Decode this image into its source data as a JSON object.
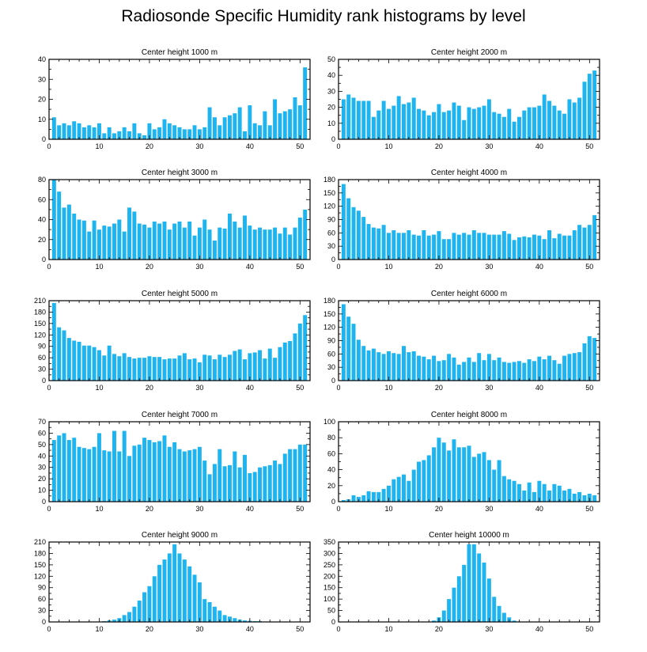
{
  "title": "Radiosonde Specific Humidity rank histograms by level",
  "bar_color": "#1EB4F0",
  "chart_data": [
    {
      "type": "bar",
      "title": "Center height 1000 m",
      "x": [
        1,
        2,
        3,
        4,
        5,
        6,
        7,
        8,
        9,
        10,
        11,
        12,
        13,
        14,
        15,
        16,
        17,
        18,
        19,
        20,
        21,
        22,
        23,
        24,
        25,
        26,
        27,
        28,
        29,
        30,
        31,
        32,
        33,
        34,
        35,
        36,
        37,
        38,
        39,
        40,
        41,
        42,
        43,
        44,
        45,
        46,
        47,
        48,
        49,
        50,
        51
      ],
      "values": [
        11,
        7,
        8,
        7,
        9,
        8,
        6,
        7,
        6,
        8,
        3,
        6,
        3,
        4,
        6,
        4,
        8,
        3,
        2,
        8,
        5,
        6,
        10,
        8,
        7,
        6,
        5,
        5,
        7,
        5,
        6,
        16,
        11,
        7,
        11,
        12,
        13,
        16,
        4,
        17,
        8,
        7,
        14,
        7,
        20,
        13,
        14,
        15,
        21,
        17,
        36
      ],
      "xlim": [
        0,
        52
      ],
      "xticks": [
        0,
        10,
        20,
        30,
        40,
        50
      ],
      "ylim": [
        0,
        40
      ],
      "yticks": [
        0,
        10,
        20,
        30,
        40
      ],
      "yminor": 5,
      "xlabel": "",
      "ylabel": ""
    },
    {
      "type": "bar",
      "title": "Center height 2000 m",
      "x": [
        1,
        2,
        3,
        4,
        5,
        6,
        7,
        8,
        9,
        10,
        11,
        12,
        13,
        14,
        15,
        16,
        17,
        18,
        19,
        20,
        21,
        22,
        23,
        24,
        25,
        26,
        27,
        28,
        29,
        30,
        31,
        32,
        33,
        34,
        35,
        36,
        37,
        38,
        39,
        40,
        41,
        42,
        43,
        44,
        45,
        46,
        47,
        48,
        49,
        50,
        51
      ],
      "values": [
        25,
        28,
        26,
        24,
        24,
        24,
        14,
        18,
        24,
        19,
        21,
        27,
        22,
        23,
        26,
        19,
        18,
        15,
        17,
        22,
        17,
        18,
        23,
        21,
        12,
        20,
        19,
        20,
        21,
        25,
        17,
        16,
        14,
        19,
        11,
        14,
        18,
        20,
        20,
        21,
        28,
        24,
        21,
        18,
        16,
        25,
        23,
        26,
        36,
        41,
        43
      ],
      "xlim": [
        0,
        52
      ],
      "xticks": [
        0,
        10,
        20,
        30,
        40,
        50
      ],
      "ylim": [
        0,
        50
      ],
      "yticks": [
        0,
        10,
        20,
        30,
        40,
        50
      ],
      "yminor": 5,
      "xlabel": "",
      "ylabel": ""
    },
    {
      "type": "bar",
      "title": "Center height 3000 m",
      "x": [
        1,
        2,
        3,
        4,
        5,
        6,
        7,
        8,
        9,
        10,
        11,
        12,
        13,
        14,
        15,
        16,
        17,
        18,
        19,
        20,
        21,
        22,
        23,
        24,
        25,
        26,
        27,
        28,
        29,
        30,
        31,
        32,
        33,
        34,
        35,
        36,
        37,
        38,
        39,
        40,
        41,
        42,
        43,
        44,
        45,
        46,
        47,
        48,
        49,
        50,
        51
      ],
      "values": [
        80,
        68,
        52,
        55,
        46,
        40,
        39,
        28,
        39,
        30,
        34,
        33,
        36,
        40,
        28,
        52,
        48,
        36,
        35,
        32,
        38,
        36,
        38,
        30,
        36,
        38,
        32,
        38,
        24,
        32,
        40,
        30,
        19,
        32,
        31,
        46,
        38,
        32,
        44,
        34,
        30,
        32,
        30,
        30,
        32,
        26,
        32,
        25,
        32,
        42,
        50
      ],
      "xlim": [
        0,
        52
      ],
      "xticks": [
        0,
        10,
        20,
        30,
        40,
        50
      ],
      "ylim": [
        0,
        80
      ],
      "yticks": [
        0,
        20,
        40,
        60,
        80
      ],
      "yminor": 10,
      "xlabel": "",
      "ylabel": ""
    },
    {
      "type": "bar",
      "title": "Center height 4000 m",
      "x": [
        1,
        2,
        3,
        4,
        5,
        6,
        7,
        8,
        9,
        10,
        11,
        12,
        13,
        14,
        15,
        16,
        17,
        18,
        19,
        20,
        21,
        22,
        23,
        24,
        25,
        26,
        27,
        28,
        29,
        30,
        31,
        32,
        33,
        34,
        35,
        36,
        37,
        38,
        39,
        40,
        41,
        42,
        43,
        44,
        45,
        46,
        47,
        48,
        49,
        50,
        51
      ],
      "values": [
        170,
        138,
        118,
        110,
        96,
        80,
        72,
        70,
        78,
        60,
        66,
        60,
        60,
        66,
        56,
        54,
        66,
        54,
        56,
        64,
        46,
        46,
        60,
        56,
        60,
        56,
        66,
        60,
        60,
        56,
        56,
        56,
        64,
        58,
        44,
        50,
        52,
        50,
        56,
        54,
        46,
        66,
        48,
        58,
        54,
        54,
        66,
        78,
        72,
        78,
        100
      ],
      "xlim": [
        0,
        52
      ],
      "xticks": [
        0,
        10,
        20,
        30,
        40,
        50
      ],
      "ylim": [
        0,
        180
      ],
      "yticks": [
        0,
        30,
        60,
        90,
        120,
        150,
        180
      ],
      "yminor": 15,
      "xlabel": "",
      "ylabel": ""
    },
    {
      "type": "bar",
      "title": "Center height 5000 m",
      "x": [
        1,
        2,
        3,
        4,
        5,
        6,
        7,
        8,
        9,
        10,
        11,
        12,
        13,
        14,
        15,
        16,
        17,
        18,
        19,
        20,
        21,
        22,
        23,
        24,
        25,
        26,
        27,
        28,
        29,
        30,
        31,
        32,
        33,
        34,
        35,
        36,
        37,
        38,
        39,
        40,
        41,
        42,
        43,
        44,
        45,
        46,
        47,
        48,
        49,
        50,
        51
      ],
      "values": [
        204,
        140,
        132,
        112,
        105,
        102,
        92,
        92,
        88,
        80,
        66,
        92,
        70,
        64,
        72,
        62,
        58,
        60,
        60,
        64,
        62,
        62,
        56,
        58,
        58,
        66,
        72,
        56,
        58,
        48,
        68,
        66,
        56,
        68,
        62,
        68,
        78,
        82,
        56,
        72,
        74,
        80,
        58,
        84,
        60,
        88,
        100,
        104,
        124,
        150,
        172
      ],
      "xlim": [
        0,
        52
      ],
      "xticks": [
        0,
        10,
        20,
        30,
        40,
        50
      ],
      "ylim": [
        0,
        210
      ],
      "yticks": [
        0,
        30,
        60,
        90,
        120,
        150,
        180,
        210
      ],
      "yminor": 15,
      "xlabel": "",
      "ylabel": ""
    },
    {
      "type": "bar",
      "title": "Center height 6000 m",
      "x": [
        1,
        2,
        3,
        4,
        5,
        6,
        7,
        8,
        9,
        10,
        11,
        12,
        13,
        14,
        15,
        16,
        17,
        18,
        19,
        20,
        21,
        22,
        23,
        24,
        25,
        26,
        27,
        28,
        29,
        30,
        31,
        32,
        33,
        34,
        35,
        36,
        37,
        38,
        39,
        40,
        41,
        42,
        43,
        44,
        45,
        46,
        47,
        48,
        49,
        50,
        51
      ],
      "values": [
        172,
        144,
        128,
        92,
        78,
        68,
        72,
        64,
        60,
        66,
        62,
        60,
        78,
        64,
        66,
        56,
        54,
        48,
        56,
        44,
        46,
        60,
        52,
        36,
        42,
        52,
        42,
        62,
        46,
        60,
        46,
        52,
        42,
        40,
        42,
        44,
        40,
        48,
        44,
        54,
        48,
        56,
        46,
        38,
        56,
        60,
        62,
        64,
        84,
        100,
        96
      ],
      "xlim": [
        0,
        52
      ],
      "xticks": [
        0,
        10,
        20,
        30,
        40,
        50
      ],
      "ylim": [
        0,
        180
      ],
      "yticks": [
        0,
        30,
        60,
        90,
        120,
        150,
        180
      ],
      "yminor": 15,
      "xlabel": "",
      "ylabel": ""
    },
    {
      "type": "bar",
      "title": "Center height 7000 m",
      "x": [
        1,
        2,
        3,
        4,
        5,
        6,
        7,
        8,
        9,
        10,
        11,
        12,
        13,
        14,
        15,
        16,
        17,
        18,
        19,
        20,
        21,
        22,
        23,
        24,
        25,
        26,
        27,
        28,
        29,
        30,
        31,
        32,
        33,
        34,
        35,
        36,
        37,
        38,
        39,
        40,
        41,
        42,
        43,
        44,
        45,
        46,
        47,
        48,
        49,
        50,
        51
      ],
      "values": [
        54,
        58,
        60,
        54,
        56,
        48,
        47,
        46,
        48,
        60,
        45,
        44,
        62,
        44,
        62,
        40,
        49,
        50,
        56,
        54,
        52,
        53,
        58,
        48,
        52,
        46,
        44,
        45,
        46,
        48,
        36,
        24,
        33,
        46,
        31,
        32,
        44,
        30,
        41,
        25,
        26,
        30,
        31,
        32,
        36,
        33,
        42,
        46,
        46,
        50,
        50
      ],
      "xlim": [
        0,
        52
      ],
      "xticks": [
        0,
        10,
        20,
        30,
        40,
        50
      ],
      "ylim": [
        0,
        70
      ],
      "yticks": [
        0,
        10,
        20,
        30,
        40,
        50,
        60,
        70
      ],
      "yminor": 5,
      "xlabel": "",
      "ylabel": ""
    },
    {
      "type": "bar",
      "title": "Center height 8000 m",
      "x": [
        1,
        2,
        3,
        4,
        5,
        6,
        7,
        8,
        9,
        10,
        11,
        12,
        13,
        14,
        15,
        16,
        17,
        18,
        19,
        20,
        21,
        22,
        23,
        24,
        25,
        26,
        27,
        28,
        29,
        30,
        31,
        32,
        33,
        34,
        35,
        36,
        37,
        38,
        39,
        40,
        41,
        42,
        43,
        44,
        45,
        46,
        47,
        48,
        49,
        50,
        51
      ],
      "values": [
        2,
        3,
        8,
        6,
        8,
        13,
        12,
        12,
        16,
        20,
        28,
        31,
        34,
        26,
        40,
        50,
        52,
        58,
        68,
        80,
        74,
        64,
        78,
        68,
        68,
        70,
        56,
        60,
        62,
        52,
        40,
        52,
        32,
        28,
        26,
        22,
        14,
        24,
        12,
        26,
        22,
        14,
        22,
        20,
        14,
        16,
        10,
        12,
        8,
        10,
        8
      ],
      "xlim": [
        0,
        52
      ],
      "xticks": [
        0,
        10,
        20,
        30,
        40,
        50
      ],
      "ylim": [
        0,
        100
      ],
      "yticks": [
        0,
        20,
        40,
        60,
        80,
        100
      ],
      "yminor": 10,
      "xlabel": "",
      "ylabel": ""
    },
    {
      "type": "bar",
      "title": "Center height 9000 m",
      "x": [
        1,
        2,
        3,
        4,
        5,
        6,
        7,
        8,
        9,
        10,
        11,
        12,
        13,
        14,
        15,
        16,
        17,
        18,
        19,
        20,
        21,
        22,
        23,
        24,
        25,
        26,
        27,
        28,
        29,
        30,
        31,
        32,
        33,
        34,
        35,
        36,
        37,
        38,
        39,
        40,
        41,
        42,
        43,
        44,
        45,
        46,
        47,
        48,
        49,
        50,
        51
      ],
      "values": [
        0,
        0,
        0,
        0,
        0,
        0,
        0,
        0,
        0,
        0,
        2,
        4,
        6,
        10,
        18,
        26,
        40,
        56,
        78,
        94,
        120,
        150,
        164,
        180,
        204,
        180,
        164,
        146,
        124,
        104,
        60,
        52,
        40,
        30,
        18,
        14,
        10,
        6,
        4,
        3,
        2,
        2,
        1,
        1,
        1,
        1,
        1,
        0,
        0,
        0,
        0
      ],
      "xlim": [
        0,
        52
      ],
      "xticks": [
        0,
        10,
        20,
        30,
        40,
        50
      ],
      "ylim": [
        0,
        210
      ],
      "yticks": [
        0,
        30,
        60,
        90,
        120,
        150,
        180,
        210
      ],
      "yminor": 15,
      "xlabel": "",
      "ylabel": ""
    },
    {
      "type": "bar",
      "title": "Center height 10000 m",
      "x": [
        1,
        2,
        3,
        4,
        5,
        6,
        7,
        8,
        9,
        10,
        11,
        12,
        13,
        14,
        15,
        16,
        17,
        18,
        19,
        20,
        21,
        22,
        23,
        24,
        25,
        26,
        27,
        28,
        29,
        30,
        31,
        32,
        33,
        34,
        35,
        36,
        37,
        38,
        39,
        40,
        41,
        42,
        43,
        44,
        45,
        46,
        47,
        48,
        49,
        50,
        51
      ],
      "values": [
        0,
        0,
        0,
        0,
        0,
        0,
        0,
        0,
        0,
        0,
        0,
        0,
        0,
        0,
        0,
        0,
        0,
        0,
        6,
        20,
        50,
        100,
        150,
        200,
        250,
        340,
        340,
        300,
        260,
        190,
        110,
        70,
        40,
        20,
        6,
        2,
        0,
        0,
        0,
        0,
        0,
        0,
        0,
        0,
        0,
        0,
        0,
        0,
        0,
        0,
        0
      ],
      "xlim": [
        0,
        52
      ],
      "xticks": [
        0,
        10,
        20,
        30,
        40,
        50
      ],
      "ylim": [
        0,
        350
      ],
      "yticks": [
        0,
        50,
        100,
        150,
        200,
        250,
        300,
        350
      ],
      "yminor": 25,
      "xlabel": "",
      "ylabel": ""
    }
  ]
}
